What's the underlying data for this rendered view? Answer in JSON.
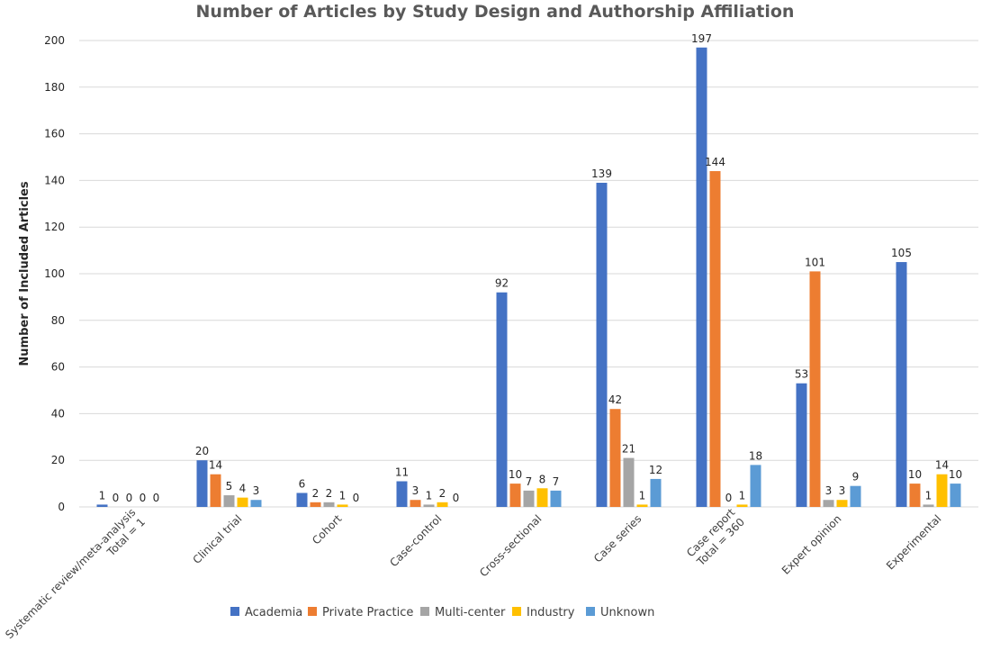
{
  "chart_data": {
    "type": "bar",
    "title": "Number of Articles by Study Design and Authorship Affiliation",
    "xlabel": "",
    "ylabel": "Number of Included Articles",
    "ylim": [
      0,
      200
    ],
    "ytick_step": 20,
    "grid": true,
    "legend_position": "bottom",
    "categories": [
      [
        "Systematic review/meta-analysis",
        "Total = 1"
      ],
      [
        "Clinical trial"
      ],
      [
        "Cohort"
      ],
      [
        "Case-control"
      ],
      [
        "Cross-sectional"
      ],
      [
        "Case series"
      ],
      [
        "Case report",
        "Total = 360"
      ],
      [
        "Expert opinion"
      ],
      [
        "Experimental"
      ]
    ],
    "series": [
      {
        "name": "Academia",
        "color": "#4472c4",
        "values": [
          1,
          20,
          6,
          11,
          92,
          139,
          197,
          53,
          105
        ]
      },
      {
        "name": "Private Practice",
        "color": "#ed7d31",
        "values": [
          0,
          14,
          2,
          3,
          10,
          42,
          144,
          101,
          10
        ]
      },
      {
        "name": "Multi-center",
        "color": "#a5a5a5",
        "values": [
          0,
          5,
          2,
          1,
          7,
          21,
          0,
          3,
          1
        ]
      },
      {
        "name": "Industry",
        "color": "#ffc000",
        "values": [
          0,
          4,
          1,
          2,
          8,
          1,
          1,
          3,
          14
        ]
      },
      {
        "name": "Unknown",
        "color": "#5b9bd5",
        "values": [
          0,
          3,
          0,
          0,
          7,
          12,
          18,
          9,
          10
        ]
      }
    ]
  }
}
